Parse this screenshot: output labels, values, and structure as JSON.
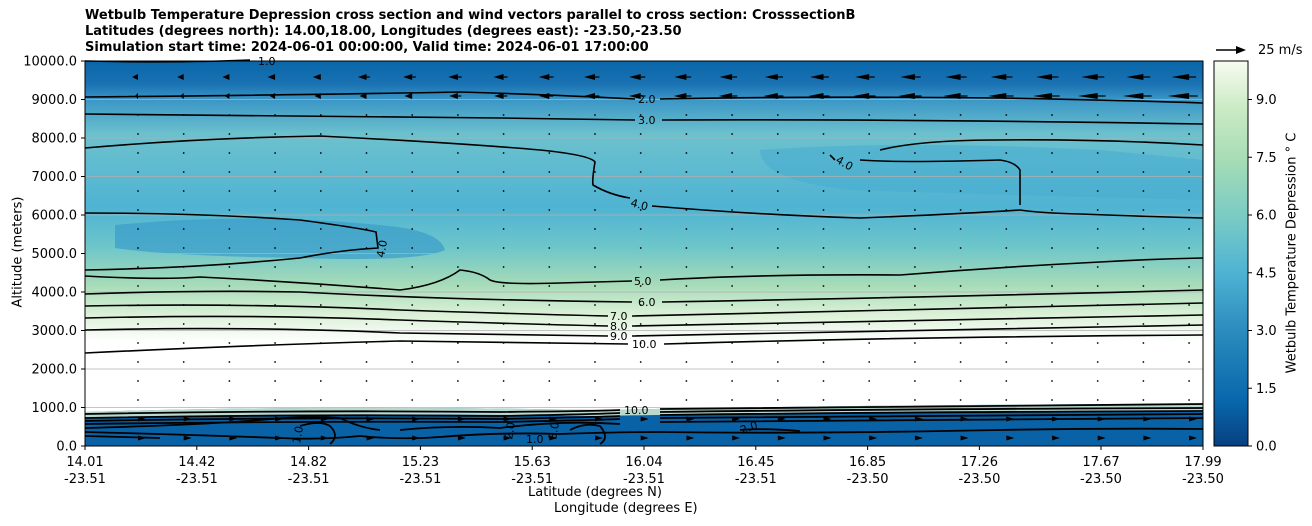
{
  "chart_data": {
    "type": "contourf",
    "title_lines": [
      "Wetbulb Temperature Depression cross section and wind vectors parallel to cross section: CrosssectionB",
      "Latitudes (degrees north): 14.00,18.00, Longitudes (degrees east): -23.50,-23.50",
      "Simulation start time: 2024-06-01 00:00:00, Valid time: 2024-06-01 17:00:00"
    ],
    "ylabel": "Altitude (meters)",
    "xlabel_lat": "Latitude (degrees N)",
    "xlabel_lon": "Longitude (degrees E)",
    "ylim": [
      0,
      10000
    ],
    "y_ticks": [
      "0.0",
      "1000.0",
      "2000.0",
      "3000.0",
      "4000.0",
      "5000.0",
      "6000.0",
      "7000.0",
      "8000.0",
      "9000.0",
      "10000.0"
    ],
    "x_ticks": [
      {
        "lat": "14.01",
        "lon": "-23.51"
      },
      {
        "lat": "14.42",
        "lon": "-23.51"
      },
      {
        "lat": "14.82",
        "lon": "-23.51"
      },
      {
        "lat": "15.23",
        "lon": "-23.51"
      },
      {
        "lat": "15.63",
        "lon": "-23.51"
      },
      {
        "lat": "16.04",
        "lon": "-23.51"
      },
      {
        "lat": "16.45",
        "lon": "-23.51"
      },
      {
        "lat": "16.85",
        "lon": "-23.50"
      },
      {
        "lat": "17.26",
        "lon": "-23.50"
      },
      {
        "lat": "17.67",
        "lon": "-23.50"
      },
      {
        "lat": "17.99",
        "lon": "-23.50"
      }
    ],
    "colorbar": {
      "label": "Wetbulb Temperature Depression $^\\circ$C",
      "label_display": "Wetbulb Temperature Depression ° C",
      "range": [
        0,
        10
      ],
      "ticks": [
        "0.0",
        "1.5",
        "3.0",
        "4.5",
        "6.0",
        "7.5",
        "9.0"
      ],
      "colors": [
        "#084081",
        "#0c5a9a",
        "#1673b0",
        "#2b8cbe",
        "#3ea0c8",
        "#4eb3d3",
        "#66c2cc",
        "#7bccc4",
        "#97d8bf",
        "#a8ddb5",
        "#bee6c3",
        "#ccebc5",
        "#dbf1d5",
        "#e8f6e3",
        "#f2fbef",
        "#f7fcf0"
      ]
    },
    "contour_labels": [
      "1.0",
      "2.0",
      "3.0",
      "4.0",
      "4.0",
      "4.0",
      "5.0",
      "6.0",
      "7.0",
      "8.0",
      "9.0",
      "10.0",
      "10.0",
      "1.0",
      "2.0",
      "3.0",
      "2.0",
      "1.0"
    ],
    "quiver_key": "25 m/s",
    "x_count": 11
  }
}
